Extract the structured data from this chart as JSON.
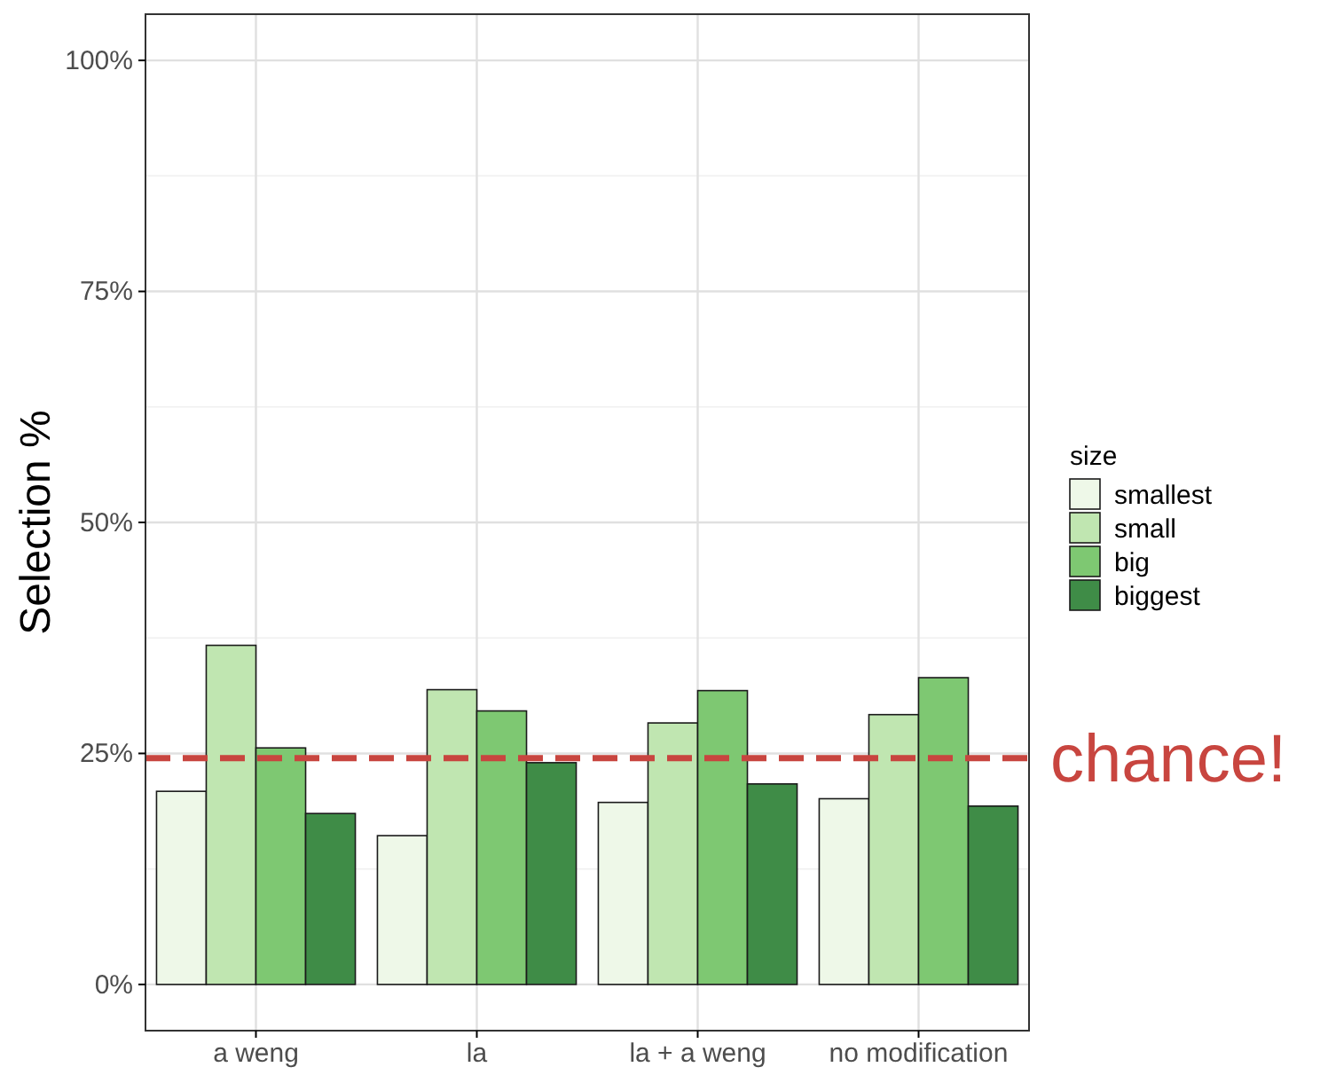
{
  "chart_data": {
    "type": "bar",
    "ylabel": "Selection %",
    "legend_title": "size",
    "categories": [
      "a weng",
      "la",
      "la + a weng",
      "no modification"
    ],
    "series": [
      {
        "name": "smallest",
        "color": "#eef8e8",
        "values": [
          20.9,
          16.1,
          19.7,
          20.1
        ]
      },
      {
        "name": "small",
        "color": "#c0e6b1",
        "values": [
          36.7,
          31.9,
          28.3,
          29.2
        ]
      },
      {
        "name": "big",
        "color": "#7ec872",
        "values": [
          25.6,
          29.6,
          31.8,
          33.2
        ]
      },
      {
        "name": "biggest",
        "color": "#3f8c47",
        "values": [
          18.5,
          24.0,
          21.7,
          19.3
        ]
      }
    ],
    "ylim": [
      -5,
      105
    ],
    "yticks": [
      {
        "value": 0,
        "label": "0%"
      },
      {
        "value": 25,
        "label": "25%"
      },
      {
        "value": 50,
        "label": "50%"
      },
      {
        "value": 75,
        "label": "75%"
      },
      {
        "value": 100,
        "label": "100%"
      }
    ],
    "ref_lines": [
      {
        "axis": "y",
        "value": 24.5,
        "label": "chance!",
        "color": "#c8453f",
        "line_style": "dashed"
      }
    ],
    "grid": true,
    "legend": "right"
  }
}
